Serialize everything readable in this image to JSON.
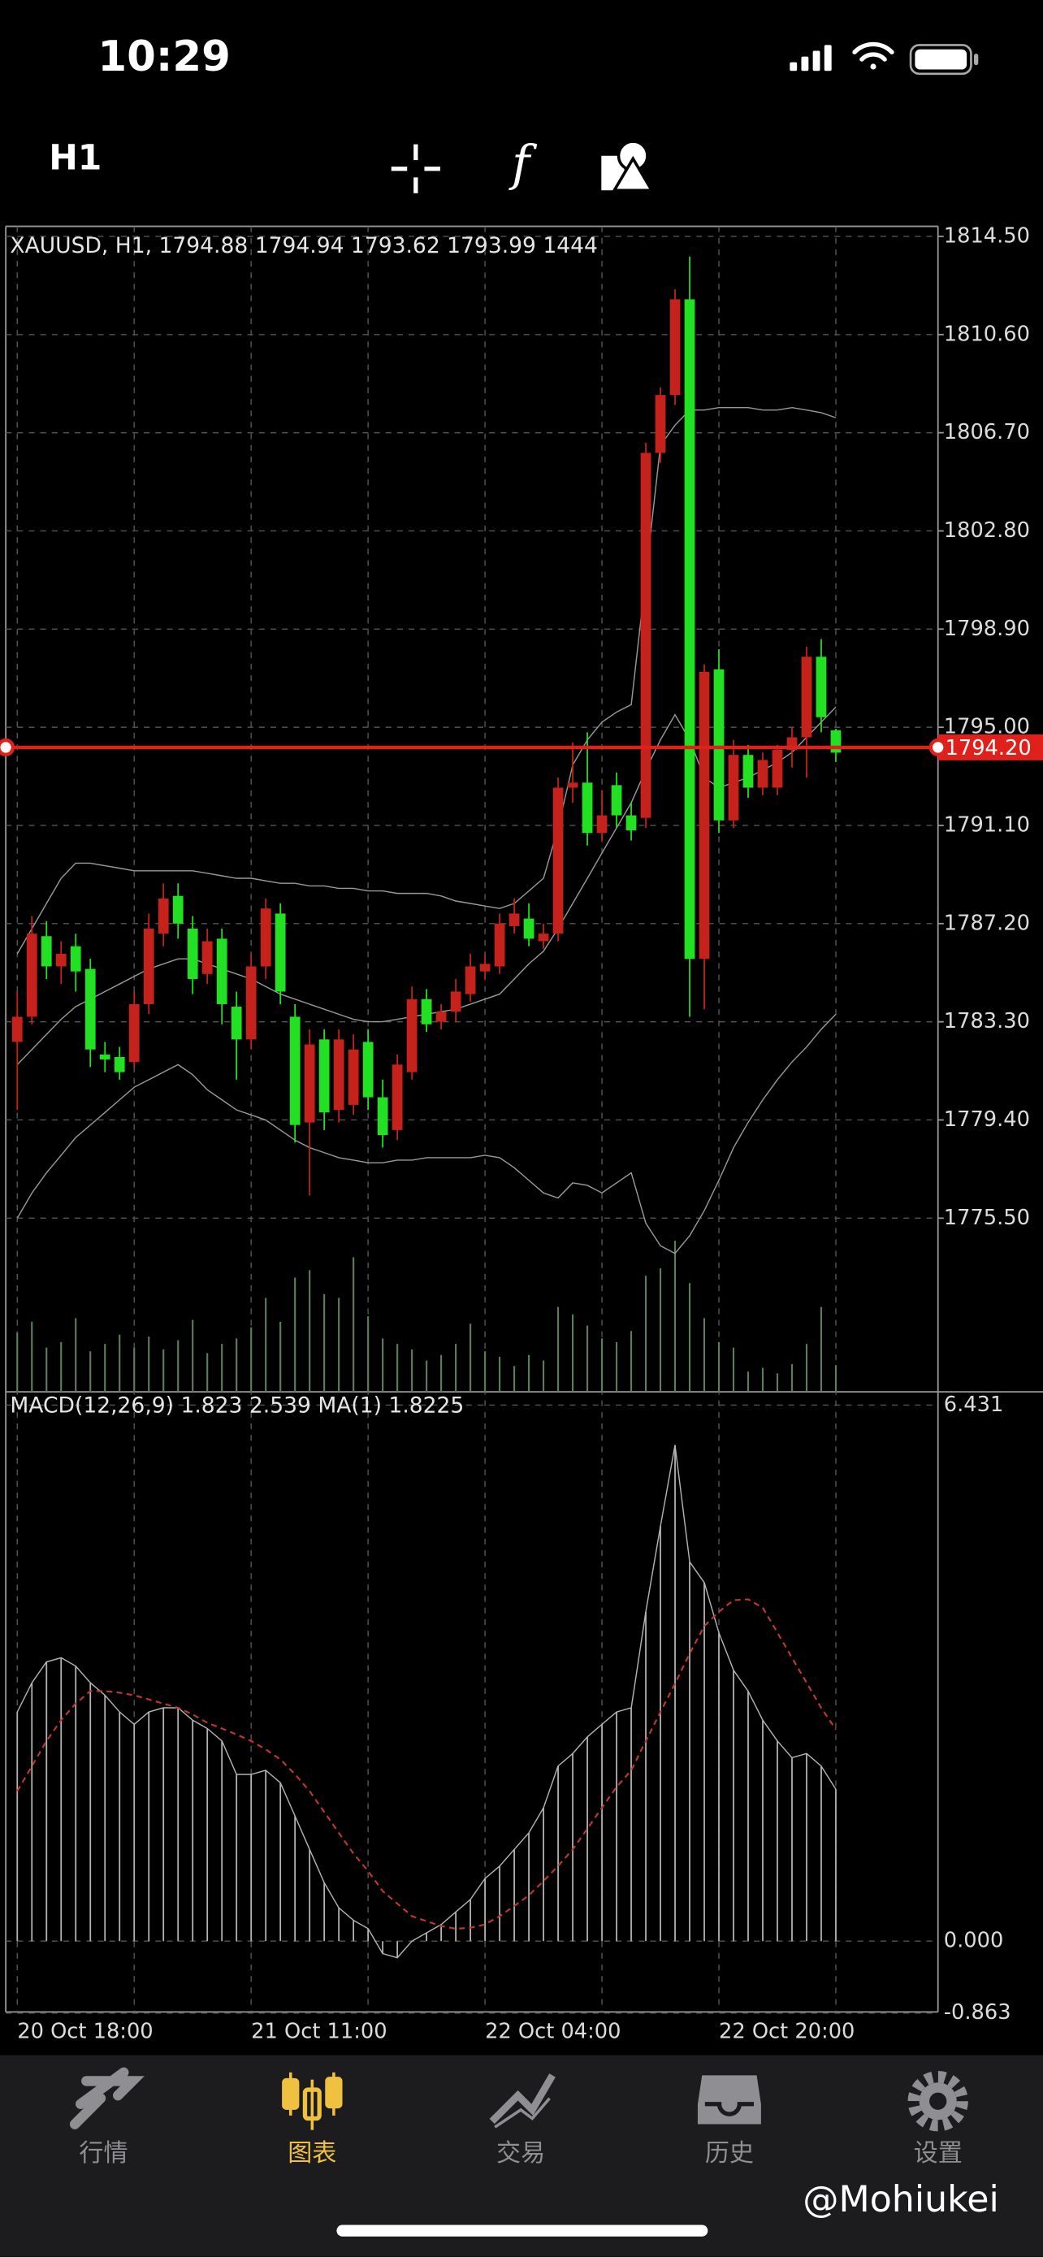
{
  "status_bar": {
    "time": "10:29"
  },
  "toolbar": {
    "timeframe": "H1",
    "indicator_icon": "f"
  },
  "chart_data": [
    {
      "type": "candlestick",
      "title": "XAUUSD, H1, 1794.88 1794.94 1793.62 1793.99 1444",
      "categories": [
        "20 Oct 18:00",
        null,
        null,
        null,
        null,
        null,
        null,
        null,
        null,
        null,
        null,
        null,
        null,
        null,
        null,
        null,
        "21 Oct 11:00",
        null,
        null,
        null,
        null,
        null,
        null,
        null,
        null,
        null,
        null,
        null,
        null,
        null,
        null,
        null,
        "22 Oct 04:00",
        null,
        null,
        null,
        null,
        null,
        null,
        null,
        null,
        null,
        null,
        null,
        null,
        null,
        null,
        null,
        "22 Oct 20:00",
        null,
        null,
        null,
        null,
        null,
        null,
        null,
        null
      ],
      "open": [
        1782.5,
        1783.5,
        1786.7,
        1785.5,
        1786.3,
        1785.4,
        1782.0,
        1781.9,
        1781.7,
        1784.0,
        1786.8,
        1788.3,
        1787.0,
        1785.2,
        1786.6,
        1783.9,
        1782.6,
        1785.5,
        1787.6,
        1783.5,
        1779.3,
        1782.6,
        1779.8,
        1780.0,
        1782.5,
        1780.3,
        1779.0,
        1781.3,
        1784.2,
        1783.3,
        1783.7,
        1784.4,
        1785.3,
        1785.5,
        1787.1,
        1787.4,
        1786.5,
        1786.8,
        1792.6,
        1792.8,
        1790.8,
        1792.7,
        1791.5,
        1791.4,
        1805.9,
        1808.2,
        1812.0,
        1785.8,
        1797.3,
        1791.3,
        1793.9,
        1792.6,
        1792.6,
        1794.1,
        1794.6,
        1797.8,
        1794.88
      ],
      "high": [
        1784.5,
        1787.5,
        1787.3,
        1786.5,
        1786.8,
        1785.8,
        1782.5,
        1782.3,
        1784.5,
        1787.6,
        1788.8,
        1788.8,
        1787.5,
        1787.0,
        1787.0,
        1784.5,
        1786.0,
        1788.2,
        1788.0,
        1784.0,
        1783.0,
        1783.0,
        1783.0,
        1782.8,
        1783.0,
        1781.0,
        1782.0,
        1784.7,
        1784.6,
        1784.0,
        1785.0,
        1786.0,
        1786.0,
        1787.6,
        1788.2,
        1788.0,
        1787.2,
        1793.0,
        1794.4,
        1794.8,
        1792.5,
        1793.2,
        1792.0,
        1806.3,
        1808.5,
        1812.4,
        1813.7,
        1797.5,
        1798.1,
        1794.5,
        1794.3,
        1794.0,
        1794.3,
        1795.0,
        1798.2,
        1798.5,
        1794.94
      ],
      "low": [
        1779.8,
        1783.2,
        1785.0,
        1784.8,
        1784.5,
        1781.5,
        1781.3,
        1781.0,
        1781.5,
        1783.6,
        1786.3,
        1786.6,
        1784.4,
        1784.8,
        1783.2,
        1781.0,
        1782.2,
        1785.0,
        1784.0,
        1778.5,
        1776.4,
        1779.0,
        1779.3,
        1779.6,
        1779.8,
        1778.3,
        1778.6,
        1781.0,
        1782.9,
        1783.0,
        1783.3,
        1784.1,
        1785.0,
        1785.2,
        1786.8,
        1786.3,
        1786.2,
        1786.5,
        1792.0,
        1790.3,
        1790.5,
        1791.0,
        1790.5,
        1791.0,
        1805.5,
        1807.8,
        1783.5,
        1783.8,
        1790.8,
        1791.0,
        1792.2,
        1792.3,
        1792.3,
        1793.4,
        1793.0,
        1794.8,
        1793.62
      ],
      "close": [
        1783.5,
        1786.8,
        1785.5,
        1786.0,
        1785.3,
        1782.2,
        1781.8,
        1781.3,
        1784.0,
        1787.0,
        1788.2,
        1787.2,
        1785.0,
        1786.5,
        1784.0,
        1782.6,
        1785.5,
        1787.8,
        1784.5,
        1779.2,
        1782.4,
        1779.7,
        1782.6,
        1782.2,
        1780.3,
        1778.8,
        1781.6,
        1784.2,
        1783.2,
        1783.7,
        1784.5,
        1785.5,
        1785.6,
        1787.2,
        1787.6,
        1786.6,
        1786.8,
        1792.6,
        1792.8,
        1790.8,
        1791.5,
        1791.5,
        1790.9,
        1805.9,
        1808.2,
        1812.0,
        1785.8,
        1797.2,
        1791.3,
        1793.9,
        1792.6,
        1793.7,
        1794.1,
        1794.6,
        1797.8,
        1795.4,
        1793.99
      ],
      "up_color": "#c4221b",
      "down_color": "#22e022",
      "bands": {
        "color": "#9a9a9a",
        "upper": [
          1786.0,
          1787.0,
          1788.0,
          1789.0,
          1789.6,
          1789.6,
          1789.5,
          1789.4,
          1789.3,
          1789.3,
          1789.3,
          1789.3,
          1789.3,
          1789.2,
          1789.1,
          1789.0,
          1789.0,
          1788.9,
          1788.8,
          1788.8,
          1788.7,
          1788.7,
          1788.6,
          1788.6,
          1788.5,
          1788.5,
          1788.4,
          1788.4,
          1788.4,
          1788.3,
          1788.1,
          1788.0,
          1787.9,
          1787.8,
          1788.0,
          1788.5,
          1789.0,
          1791.0,
          1793.5,
          1794.5,
          1795.2,
          1795.6,
          1795.9,
          1801.0,
          1806.2,
          1807.0,
          1807.6,
          1807.6,
          1807.7,
          1807.7,
          1807.7,
          1807.6,
          1807.6,
          1807.7,
          1807.6,
          1807.5,
          1807.3
        ],
        "middle": [
          1781.6,
          1782.2,
          1782.8,
          1783.4,
          1783.9,
          1784.2,
          1784.5,
          1784.8,
          1785.1,
          1785.4,
          1785.6,
          1785.8,
          1785.8,
          1785.6,
          1785.4,
          1785.2,
          1785.0,
          1784.7,
          1784.4,
          1784.2,
          1784.0,
          1783.8,
          1783.6,
          1783.4,
          1783.3,
          1783.3,
          1783.4,
          1783.5,
          1783.6,
          1783.7,
          1783.8,
          1784.0,
          1784.2,
          1784.4,
          1785.0,
          1785.6,
          1786.1,
          1787.0,
          1788.0,
          1789.0,
          1790.0,
          1791.0,
          1792.0,
          1793.3,
          1794.5,
          1795.5,
          1794.5,
          1793.0,
          1792.6,
          1792.8,
          1793.0,
          1793.3,
          1793.6,
          1794.0,
          1794.6,
          1795.2,
          1795.8
        ],
        "lower": [
          1775.5,
          1776.5,
          1777.3,
          1778.0,
          1778.7,
          1779.2,
          1779.7,
          1780.2,
          1780.7,
          1781.0,
          1781.3,
          1781.6,
          1781.2,
          1780.6,
          1780.2,
          1779.8,
          1779.6,
          1779.4,
          1779.0,
          1778.6,
          1778.3,
          1778.1,
          1777.9,
          1777.8,
          1777.7,
          1777.7,
          1777.8,
          1777.8,
          1777.9,
          1777.9,
          1777.9,
          1777.9,
          1778.0,
          1777.9,
          1777.5,
          1777.0,
          1776.5,
          1776.3,
          1776.9,
          1776.8,
          1776.5,
          1776.9,
          1777.3,
          1775.3,
          1774.4,
          1774.1,
          1774.8,
          1775.8,
          1777.0,
          1778.3,
          1779.3,
          1780.2,
          1781.0,
          1781.7,
          1782.3,
          1783.0,
          1783.6
        ]
      },
      "volume": [
        3200,
        3800,
        2400,
        2700,
        4000,
        2200,
        2600,
        3100,
        2400,
        3000,
        2300,
        2800,
        3900,
        2100,
        2600,
        2900,
        3500,
        5100,
        3800,
        6200,
        6600,
        5300,
        5100,
        7300,
        4100,
        2900,
        2600,
        2300,
        1700,
        2000,
        2600,
        3700,
        2200,
        1900,
        1400,
        2000,
        1700,
        4600,
        4200,
        3600,
        2900,
        2700,
        3300,
        6300,
        6700,
        8200,
        5900,
        4000,
        2700,
        2400,
        1100,
        1300,
        1000,
        1500,
        2600,
        4600,
        1444
      ],
      "volume_color": "#5d7d5d",
      "price_line": {
        "value": 1794.2,
        "label": "1794.20",
        "color": "#e0201a"
      },
      "ylim": [
        1768.6,
        1814.9
      ],
      "yticks": [
        {
          "value": 1814.5,
          "label": "1814.50"
        },
        {
          "value": 1810.6,
          "label": "1810.60"
        },
        {
          "value": 1806.7,
          "label": "1806.70"
        },
        {
          "value": 1802.8,
          "label": "1802.80"
        },
        {
          "value": 1798.9,
          "label": "1798.90"
        },
        {
          "value": 1795.0,
          "label": "1795.00"
        },
        {
          "value": 1791.1,
          "label": "1791.10"
        },
        {
          "value": 1787.2,
          "label": "1787.20"
        },
        {
          "value": 1783.3,
          "label": "1783.30"
        },
        {
          "value": 1779.4,
          "label": "1779.40"
        },
        {
          "value": 1775.5,
          "label": "1775.50"
        }
      ],
      "grid": true
    },
    {
      "type": "macd",
      "title": "MACD(12,26,9) 1.823 2.539 MA(1) 1.8225",
      "histogram": [
        2.75,
        3.1,
        3.35,
        3.4,
        3.3,
        3.1,
        2.95,
        2.75,
        2.6,
        2.75,
        2.8,
        2.8,
        2.65,
        2.55,
        2.4,
        2.0,
        2.0,
        2.05,
        1.9,
        1.5,
        1.1,
        0.7,
        0.4,
        0.25,
        0.15,
        -0.15,
        -0.2,
        0.0,
        0.1,
        0.2,
        0.35,
        0.5,
        0.75,
        0.9,
        1.1,
        1.3,
        1.6,
        2.1,
        2.25,
        2.45,
        2.6,
        2.75,
        2.8,
        3.95,
        4.98,
        5.95,
        4.55,
        4.3,
        3.7,
        3.25,
        3.0,
        2.65,
        2.4,
        2.2,
        2.25,
        2.1,
        1.823
      ],
      "histogram_color": "#b4b4b4",
      "signal": [
        1.8,
        2.1,
        2.4,
        2.65,
        2.85,
        3.0,
        3.0,
        2.98,
        2.95,
        2.9,
        2.85,
        2.8,
        2.72,
        2.62,
        2.55,
        2.48,
        2.4,
        2.3,
        2.18,
        2.0,
        1.8,
        1.55,
        1.3,
        1.05,
        0.84,
        0.6,
        0.45,
        0.3,
        0.24,
        0.18,
        0.15,
        0.16,
        0.2,
        0.3,
        0.42,
        0.55,
        0.72,
        0.9,
        1.1,
        1.35,
        1.6,
        1.85,
        2.05,
        2.4,
        2.75,
        3.09,
        3.45,
        3.78,
        3.95,
        4.09,
        4.1,
        4.0,
        3.7,
        3.4,
        3.1,
        2.8,
        2.539
      ],
      "signal_color": "#c0392b",
      "ylim": [
        -0.85,
        6.59
      ],
      "yticks": [
        6.431,
        {
          "value": 0,
          "label": "0.000"
        },
        -0.863
      ]
    }
  ],
  "tabs": [
    {
      "label": "行情"
    },
    {
      "label": "图表"
    },
    {
      "label": "交易"
    },
    {
      "label": "历史"
    },
    {
      "label": "设置"
    }
  ],
  "watermark": "@Mohiukei"
}
